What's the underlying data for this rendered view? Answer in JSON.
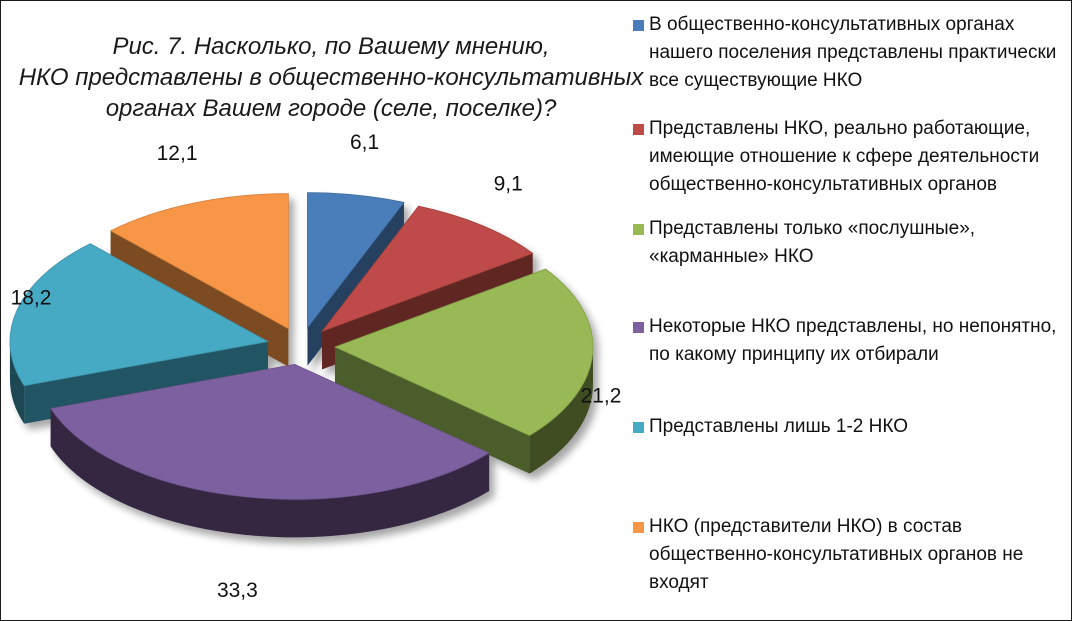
{
  "chart_data": {
    "type": "pie",
    "title_lines": [
      "Рис. 7. Насколько, по Вашему мнению,",
      "НКО представлены в общественно-консультативных",
      "органах Вашем городе (селе, поселке)?"
    ],
    "style": "3d-exploded",
    "slices": [
      {
        "label": "6,1",
        "value": 6.1,
        "color": "#4a7ebb",
        "legend": "В общественно-консультативных органах нашего поселения представлены практически все существующие НКО"
      },
      {
        "label": "9,1",
        "value": 9.1,
        "color": "#be4b48",
        "legend": "Представлены НКО, реально работающие, имеющие отношение к сфере деятельности общественно-консультативных органов"
      },
      {
        "label": "21,2",
        "value": 21.2,
        "color": "#98b954",
        "legend": "Представлены только «послушные», «карманные» НКО"
      },
      {
        "label": "33,3",
        "value": 33.3,
        "color": "#7d60a0",
        "legend": "Некоторые НКО представлены, но непонятно, по какому принципу их отбирали"
      },
      {
        "label": "18,2",
        "value": 18.2,
        "color": "#46aac5",
        "legend": "Представлены лишь 1-2 НКО"
      },
      {
        "label": "12,1",
        "value": 12.1,
        "color": "#f79646",
        "legend": "НКО (представители НКО) в состав общественно-консультативных органов не входят"
      }
    ],
    "legend_position": "right"
  }
}
